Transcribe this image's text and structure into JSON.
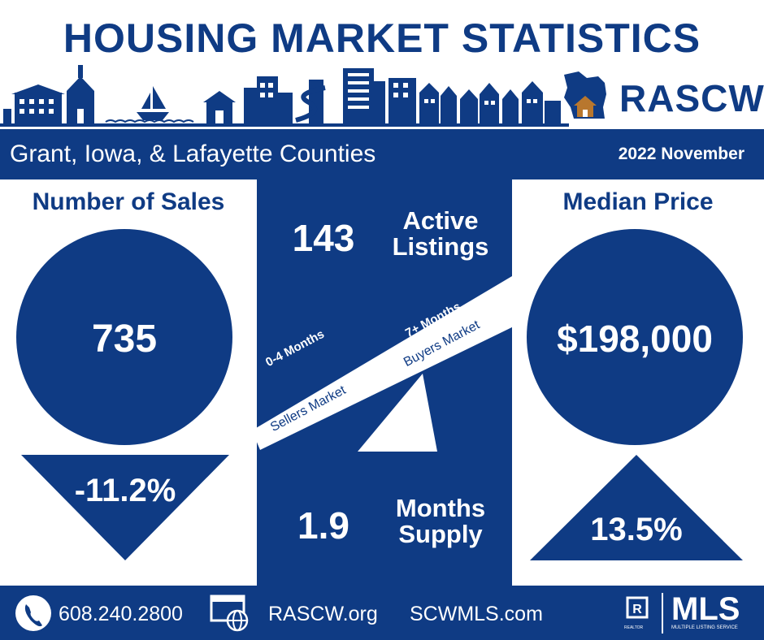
{
  "header": {
    "title": "HOUSING MARKET STATISTICS",
    "brand": "RASCW",
    "region": "Grant, Iowa, & Lafayette Counties",
    "period": "2022 November"
  },
  "sales": {
    "heading": "Number of Sales",
    "value": "735",
    "change": "-11.2%",
    "direction": "down"
  },
  "listings": {
    "value": "143",
    "label_line1": "Active",
    "label_line2": "Listings"
  },
  "seesaw": {
    "left_months": "0-4 Months",
    "left_market": "Sellers Market",
    "right_months": "7+ Months",
    "right_market": "Buyers Market"
  },
  "supply": {
    "value": "1.9",
    "label_line1": "Months",
    "label_line2": "Supply"
  },
  "median": {
    "heading": "Median Price",
    "value": "$198,000",
    "change": "13.5%",
    "direction": "up"
  },
  "footer": {
    "phone": "608.240.2800",
    "site1": "RASCW.org",
    "site2": "SCWMLS.com",
    "mls_label": "MLS",
    "mls_sub": "MULTIPLE LISTING SERVICE",
    "realtor_label": "REALTOR"
  },
  "colors": {
    "navy": "#0f3b84",
    "white": "#ffffff",
    "house_brown": "#b8772e"
  }
}
